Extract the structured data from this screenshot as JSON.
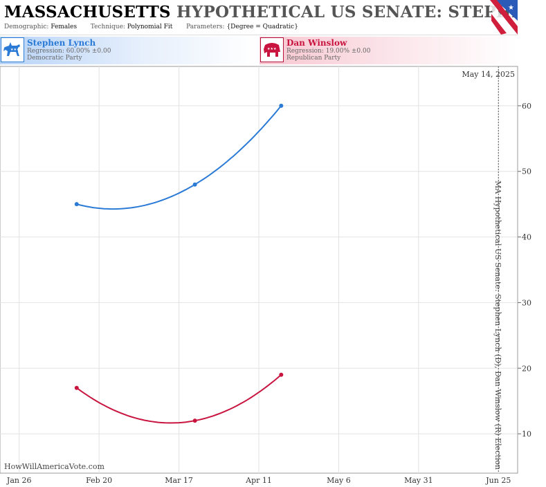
{
  "header": {
    "title_state": "MASSACHUSETTS",
    "title_rest": "HYPOTHETICAL US SENATE: STEPHEN LYNCH",
    "demographic_label": "Demographic:",
    "demographic_value": "Females",
    "technique_label": "Technique:",
    "technique_value": "Polynomial Fit",
    "parameters_label": "Parameters:",
    "parameters_value": "{Degree = Quadratic}"
  },
  "candidates": {
    "dem": {
      "name": "Stephen Lynch",
      "regression": "Regression: 60.00% ±0.00",
      "party": "Democratic Party",
      "color": "#2a7ad6",
      "icon": "donkey-icon"
    },
    "rep": {
      "name": "Dan Winslow",
      "regression": "Regression: 19.00% ±0.00",
      "party": "Republican Party",
      "color": "#c8143f",
      "icon": "elephant-icon"
    }
  },
  "watermark": "HowWillAmericaVote.com",
  "chart_data": {
    "type": "line",
    "title": "MASSACHUSETTS HYPOTHETICAL US SENATE: STEPHEN LYNCH",
    "ylabel": "MA Hypothetical US Senate: Stephen Lynch (D), Dan Winslow (R) Election",
    "x_ticks": [
      "Jan 26",
      "Feb 20",
      "Mar 17",
      "Apr 11",
      "May 6",
      "May 31",
      "Jun 25"
    ],
    "y_ticks": [
      10,
      20,
      30,
      40,
      50,
      60
    ],
    "ylim": [
      4,
      66
    ],
    "xlim": [
      "2013-01-20",
      "2013-07-01"
    ],
    "date_line": "2013-06-25",
    "date_label": "May 14, 2025",
    "grid": true,
    "series": [
      {
        "name": "Stephen Lynch",
        "color": "#2a7ad6",
        "markers": [
          {
            "x": "2013-02-13",
            "y": 45
          },
          {
            "x": "2013-03-22",
            "y": 48
          },
          {
            "x": "2013-04-18",
            "y": 60
          }
        ]
      },
      {
        "name": "Dan Winslow",
        "color": "#c8143f",
        "markers": [
          {
            "x": "2013-02-13",
            "y": 17
          },
          {
            "x": "2013-03-22",
            "y": 12
          },
          {
            "x": "2013-04-18",
            "y": 19
          }
        ]
      }
    ]
  }
}
